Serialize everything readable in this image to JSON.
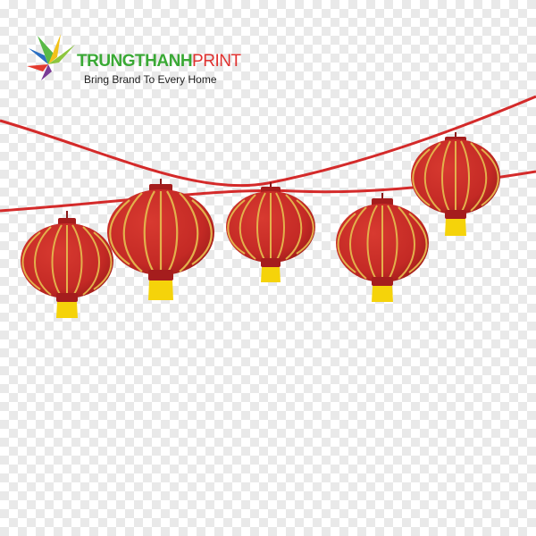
{
  "logo": {
    "brand_part1": "TRUNGTHANH",
    "brand_part2": "PRINT",
    "tagline": "Bring Brand To Every Home"
  },
  "colors": {
    "string": "#d42a2a",
    "lantern_body": "#c42a25",
    "lantern_stripe": "#e3b04b",
    "lantern_cap": "#a51d1d",
    "tassel": "#f5d30a",
    "checker_light": "#ffffff",
    "checker_dark": "#e9e9e9"
  },
  "scene": {
    "lantern_count": 5,
    "icons": [
      "logo-leaf-icon",
      "lantern-icon",
      "tassel-icon"
    ]
  }
}
